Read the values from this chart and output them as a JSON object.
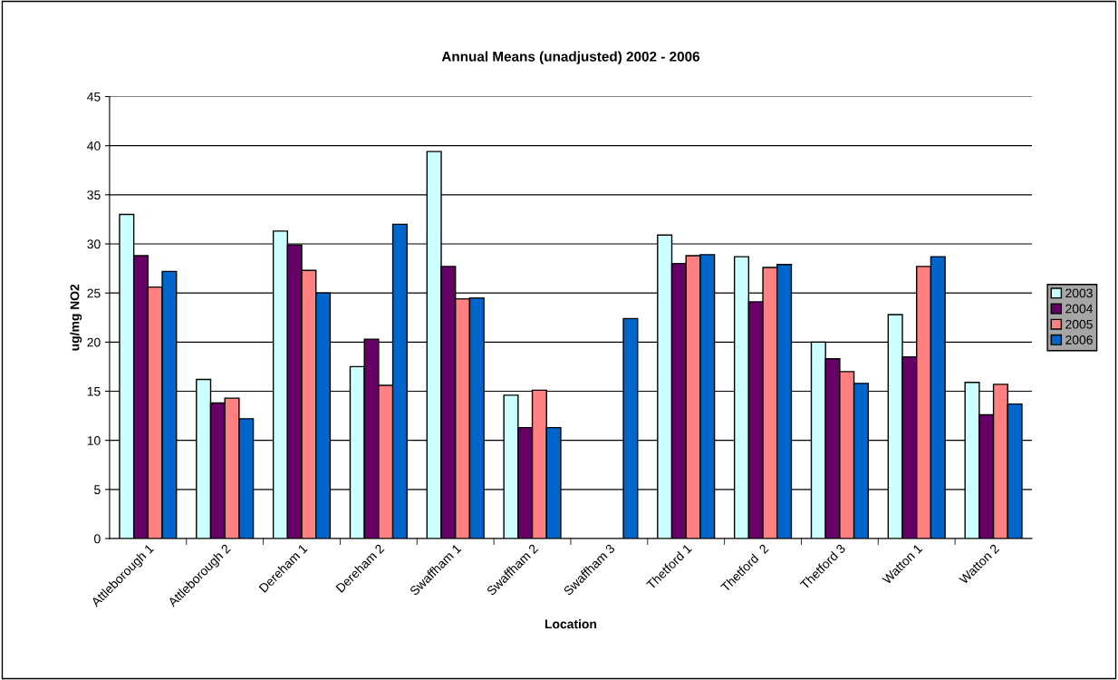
{
  "chart_data": {
    "type": "bar",
    "title": "Annual Means (unadjusted) 2002 - 2006",
    "xlabel": "Location",
    "ylabel": "ug/mg NO2",
    "categories": [
      "Attleborough 1",
      "Attleborough 2",
      "Dereham 1",
      "Dereham 2",
      "Swaffham 1",
      "Swaffham 2",
      "Swaffham 3",
      "Thetford 1",
      "Thetford  2",
      "Thetford 3",
      "Watton 1",
      "Watton 2"
    ],
    "series": [
      {
        "name": "2003",
        "color": "#ccffff",
        "values": [
          33.0,
          16.2,
          31.3,
          17.5,
          39.4,
          14.6,
          null,
          30.9,
          28.7,
          20.0,
          22.8,
          15.9
        ]
      },
      {
        "name": "2004",
        "color": "#660066",
        "values": [
          28.8,
          13.8,
          29.9,
          20.3,
          27.7,
          11.3,
          null,
          28.0,
          24.1,
          18.3,
          18.5,
          12.6
        ]
      },
      {
        "name": "2005",
        "color": "#ff8080",
        "values": [
          25.6,
          14.3,
          27.3,
          15.6,
          24.4,
          15.1,
          null,
          28.8,
          27.6,
          17.0,
          27.7,
          15.7
        ]
      },
      {
        "name": "2006",
        "color": "#0066cc",
        "values": [
          27.2,
          12.2,
          25.0,
          32.0,
          24.5,
          11.3,
          22.4,
          28.9,
          27.9,
          15.8,
          28.7,
          13.7
        ]
      }
    ],
    "ylim": [
      0,
      45
    ],
    "yticks": [
      0,
      5,
      10,
      15,
      20,
      25,
      30,
      35,
      40,
      45
    ],
    "grid": "y",
    "legend": "right"
  }
}
